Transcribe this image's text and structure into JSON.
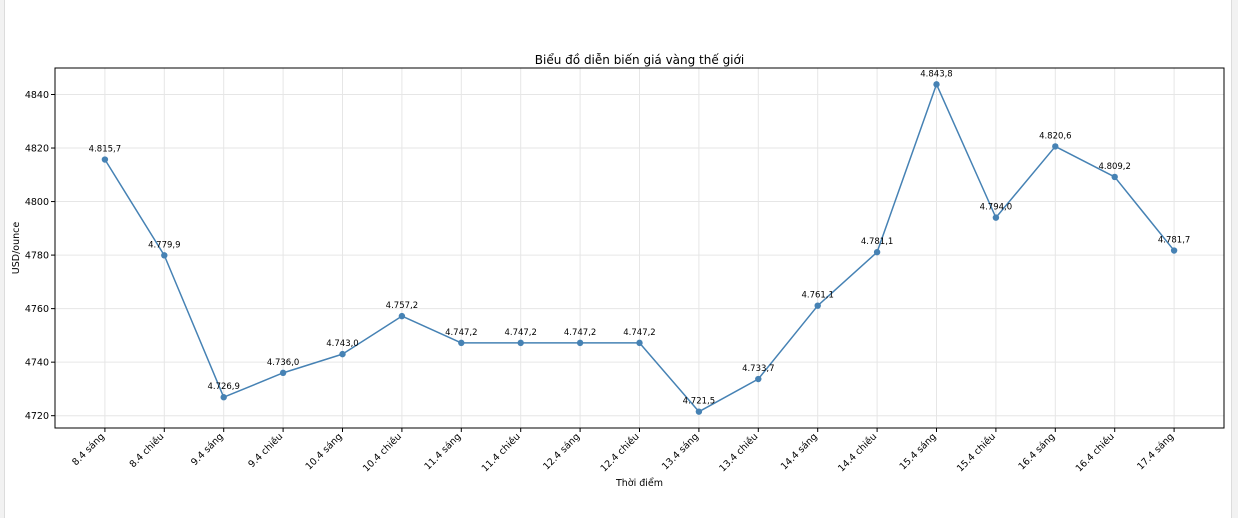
{
  "chart_data": {
    "type": "line",
    "title": "Biểu đồ diễn biến giá vàng thế giới",
    "xlabel": "Thời điểm",
    "ylabel": "USD/ounce",
    "categories": [
      "8.4 sáng",
      "8.4 chiều",
      "9.4 sáng",
      "9.4 chiều",
      "10.4 sáng",
      "10.4 chiều",
      "11.4 sáng",
      "11.4 chiều",
      "12.4 sáng",
      "12.4 chiều",
      "13.4 sáng",
      "13.4 chiều",
      "14.4 sáng",
      "14.4 chiều",
      "15.4 sáng",
      "15.4 chiều",
      "16.4 sáng",
      "16.4 chiều",
      "17.4 sáng"
    ],
    "series": [
      {
        "values": [
          4815.7,
          4779.9,
          4726.9,
          4736.0,
          4743.0,
          4757.2,
          4747.2,
          4747.2,
          4747.2,
          4747.2,
          4721.5,
          4733.7,
          4761.1,
          4781.1,
          4843.8,
          4794.0,
          4820.6,
          4809.2,
          4781.7
        ],
        "data_labels": [
          "4.815,7",
          "4.779,9",
          "4.726,9",
          "4.736,0",
          "4.743,0",
          "4.757,2",
          "4.747,2",
          "4.747,2",
          "4.747,2",
          "4.747,2",
          "4.721,5",
          "4.733,7",
          "4.761,1",
          "4.781,1",
          "4.843,8",
          "4.794,0",
          "4.820,6",
          "4.809,2",
          "4.781,7"
        ],
        "color": "#4682b4",
        "marker": "circle"
      }
    ],
    "yticks": [
      4720,
      4740,
      4760,
      4780,
      4800,
      4820,
      4840
    ],
    "ylim": [
      4715.4,
      4849.9
    ],
    "grid": true,
    "legend": "none",
    "xtick_rotation_deg": 45
  }
}
